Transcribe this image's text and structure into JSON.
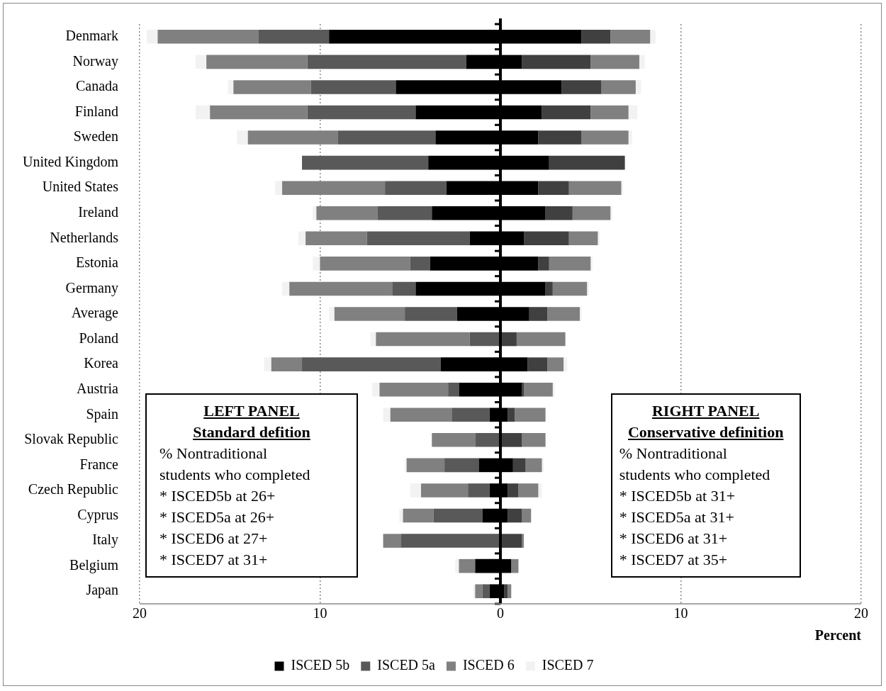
{
  "chart_data": {
    "type": "bar",
    "orientation": "horizontal",
    "stacked": true,
    "xlabel": "Percent",
    "categories": [
      "Denmark",
      "Norway",
      "Canada",
      "Finland",
      "Sweden",
      "United Kingdom",
      "United States",
      "Ireland",
      "Netherlands",
      "Estonia",
      "Germany",
      "Average",
      "Poland",
      "Korea",
      "Austria",
      "Spain",
      "Slovak Republic",
      "France",
      "Czech Republic",
      "Cyprus",
      "Italy",
      "Belgium",
      "Japan"
    ],
    "series": [
      {
        "name": "ISCED 5b",
        "color": "#000000",
        "values": [
          -9.5,
          -1.9,
          -5.8,
          -4.7,
          -3.6,
          -4.0,
          -3.0,
          -3.8,
          -1.7,
          -3.9,
          -4.7,
          -2.4,
          0,
          -3.3,
          -2.3,
          -0.6,
          0,
          -1.2,
          -0.6,
          -1.0,
          0,
          -1.4,
          -0.6
        ]
      },
      {
        "name": "ISCED 5a",
        "color": "#595959",
        "values": [
          -3.9,
          -8.8,
          -4.7,
          -6.0,
          -5.4,
          -7.0,
          -3.4,
          -3.0,
          -5.7,
          -1.1,
          -1.3,
          -2.9,
          -1.7,
          -7.7,
          -0.6,
          -2.1,
          -1.4,
          -1.9,
          -1.2,
          -2.7,
          -5.5,
          0,
          -0.4
        ]
      },
      {
        "name": "ISCED 6",
        "color": "#808080",
        "values": [
          -5.6,
          -5.6,
          -4.3,
          -5.4,
          -5.0,
          0,
          -5.7,
          -3.4,
          -3.4,
          -5.0,
          -5.7,
          -3.9,
          -5.2,
          -1.7,
          -3.8,
          -3.4,
          -2.4,
          -2.1,
          -2.6,
          -1.7,
          -1.0,
          -0.9,
          -0.4
        ]
      },
      {
        "name": "ISCED 7",
        "color": "#f2f2f2",
        "values": [
          -0.6,
          -0.6,
          -0.3,
          -0.8,
          -0.6,
          0,
          -0.4,
          -0.2,
          -0.4,
          -0.4,
          -0.4,
          -0.3,
          -0.3,
          -0.4,
          -0.4,
          -0.4,
          0,
          -0.1,
          -0.6,
          -0.2,
          0,
          -0.2,
          -0.1
        ]
      },
      {
        "color": "#000000",
        "values": [
          4.5,
          1.2,
          3.4,
          2.3,
          2.1,
          2.7,
          2.1,
          2.5,
          1.3,
          2.1,
          2.5,
          1.6,
          0,
          1.5,
          1.2,
          0.4,
          0,
          0.7,
          0.4,
          0.4,
          0,
          0.6,
          0.2
        ]
      },
      {
        "color": "#404040",
        "values": [
          1.6,
          3.8,
          2.2,
          2.7,
          2.4,
          4.2,
          1.7,
          1.5,
          2.5,
          0.6,
          0.4,
          1.0,
          0.9,
          1.1,
          0.1,
          0.4,
          1.2,
          0.7,
          0.6,
          0.8,
          1.2,
          0,
          0.2
        ]
      },
      {
        "color": "#808080",
        "values": [
          2.2,
          2.7,
          1.9,
          2.1,
          2.6,
          0,
          2.9,
          2.1,
          1.6,
          2.3,
          1.9,
          1.8,
          2.7,
          0.9,
          1.6,
          1.7,
          1.3,
          0.9,
          1.1,
          0.5,
          0.1,
          0.4,
          0.2
        ]
      },
      {
        "color": "#f2f2f2",
        "values": [
          0.3,
          0.3,
          0.3,
          0.5,
          0.2,
          0,
          0.1,
          0.1,
          0.1,
          0.1,
          0.1,
          0.1,
          0,
          0.2,
          0.1,
          0,
          0,
          0.1,
          0.2,
          0,
          0,
          0,
          0
        ]
      }
    ],
    "xlim": [
      -20,
      20
    ],
    "xticks": [
      {
        "value": -20,
        "label": "20"
      },
      {
        "value": -10,
        "label": "10"
      },
      0,
      10,
      20
    ],
    "grid": "x",
    "legend": "bottom",
    "annotations": [
      "LEFT PANEL\nStandard defition\n% Nontraditional\nstudents who completed\n* ISCED5b at 26+\n* ISCED5a at 26+\n* ISCED6 at 27+\n* ISCED7 at 31+",
      "RIGHT PANEL\nConservative definition\n% Nontraditional\nstudents who completed\n* ISCED5b at 31+\n* ISCED5a at 31+\n* ISCED6 at 31+\n* ISCED7 at 35+"
    ]
  }
}
